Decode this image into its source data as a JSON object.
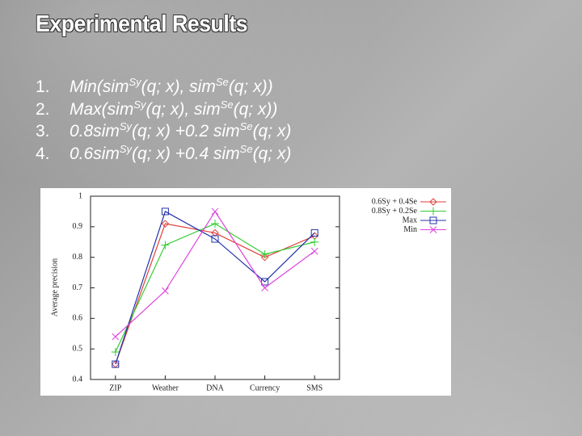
{
  "slide": {
    "title": "Experimental Results",
    "items": [
      {
        "number": "1.",
        "parts": [
          {
            "text": "Min(sim"
          },
          {
            "sup": "Sy"
          },
          {
            "text": "(q; x), sim"
          },
          {
            "sup": "Se"
          },
          {
            "text": "(q; x))"
          }
        ]
      },
      {
        "number": "2.",
        "parts": [
          {
            "text": "Max(sim"
          },
          {
            "sup": "Sy"
          },
          {
            "text": "(q; x), sim"
          },
          {
            "sup": "Se"
          },
          {
            "text": "(q; x))"
          }
        ]
      },
      {
        "number": "3.",
        "parts": [
          {
            "text": "0.8sim"
          },
          {
            "sup": "Sy"
          },
          {
            "text": "(q; x) +0.2 sim"
          },
          {
            "sup": "Se"
          },
          {
            "text": "(q; x)"
          }
        ]
      },
      {
        "number": "4.",
        "parts": [
          {
            "text": "0.6sim"
          },
          {
            "sup": "Sy"
          },
          {
            "text": "(q; x) +0.4 sim"
          },
          {
            "sup": "Se"
          },
          {
            "text": "(q; x)"
          }
        ]
      }
    ]
  },
  "chart_data": {
    "type": "line",
    "y_label": "Average precision",
    "categories": [
      "ZIP",
      "Weather",
      "DNA",
      "Currency",
      "SMS"
    ],
    "series": [
      {
        "name": "0.6Sy + 0.4Se",
        "color": "#e0403a",
        "marker": "diamond",
        "values": [
          0.45,
          0.91,
          0.88,
          0.8,
          0.87
        ]
      },
      {
        "name": "0.8Sy + 0.2Se",
        "color": "#33cc33",
        "marker": "plus",
        "values": [
          0.49,
          0.84,
          0.91,
          0.81,
          0.85
        ]
      },
      {
        "name": "Max",
        "color": "#2233aa",
        "marker": "square",
        "values": [
          0.45,
          0.95,
          0.86,
          0.72,
          0.88
        ]
      },
      {
        "name": "Min",
        "color": "#dd44dd",
        "marker": "cross",
        "values": [
          0.54,
          0.69,
          0.95,
          0.7,
          0.82
        ]
      }
    ],
    "ylim": [
      0.4,
      1
    ],
    "yticks": [
      0.4,
      0.5,
      0.6,
      0.7,
      0.8,
      0.9,
      1
    ],
    "grid": false,
    "legend": "upper right"
  }
}
